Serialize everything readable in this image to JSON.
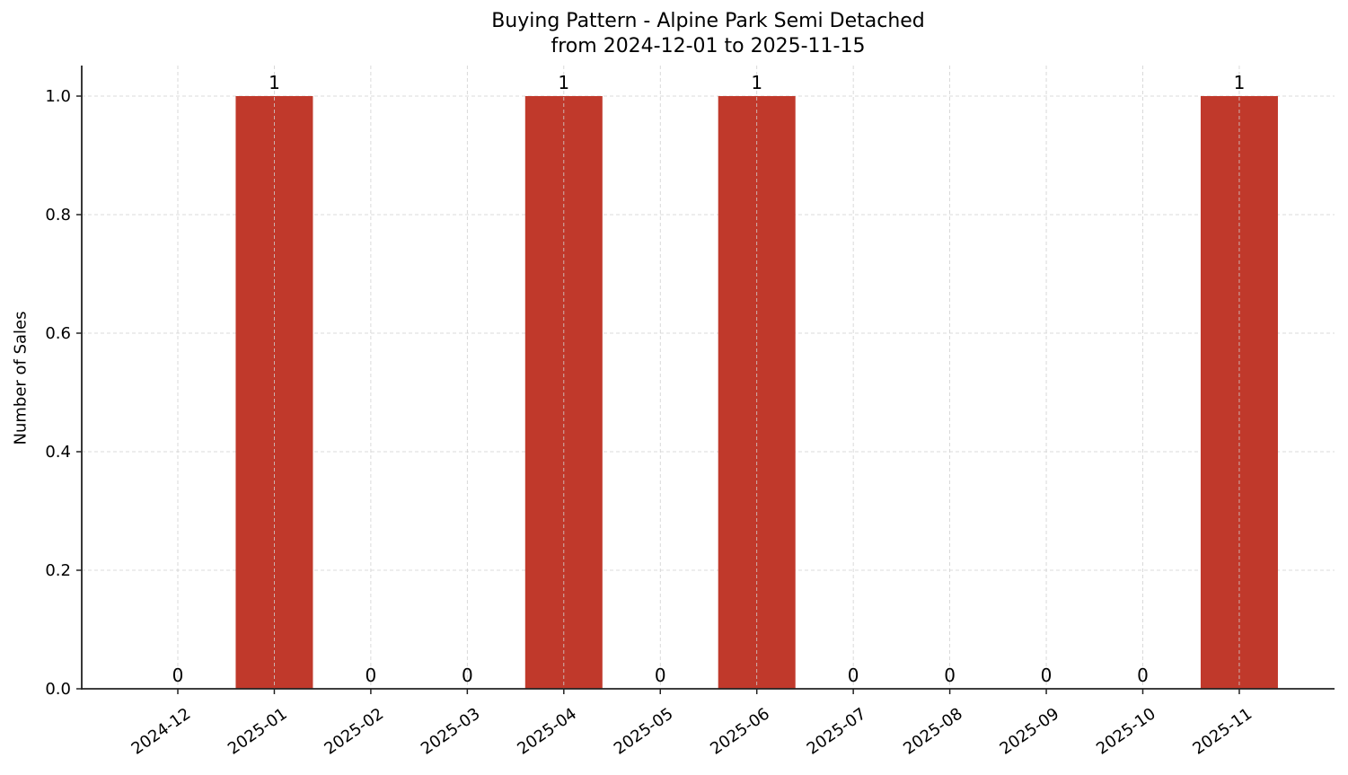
{
  "chart_data": {
    "type": "bar",
    "title": "Buying Pattern - Alpine Park Semi Detached",
    "subtitle": "from 2024-12-01 to 2025-11-15",
    "xlabel": "",
    "ylabel": "Number of Sales",
    "categories": [
      "2024-12",
      "2025-01",
      "2025-02",
      "2025-03",
      "2025-04",
      "2025-05",
      "2025-06",
      "2025-07",
      "2025-08",
      "2025-09",
      "2025-10",
      "2025-11"
    ],
    "values": [
      0,
      1,
      0,
      0,
      1,
      0,
      1,
      0,
      0,
      0,
      0,
      1
    ],
    "data_labels": [
      "0",
      "1",
      "0",
      "0",
      "1",
      "0",
      "1",
      "0",
      "0",
      "0",
      "0",
      "1"
    ],
    "ylim": [
      0,
      1.05
    ],
    "yticks": [
      "0.0",
      "0.2",
      "0.4",
      "0.6",
      "0.8",
      "1.0"
    ],
    "grid": true,
    "legend": null,
    "bar_color": "#c0392b"
  }
}
